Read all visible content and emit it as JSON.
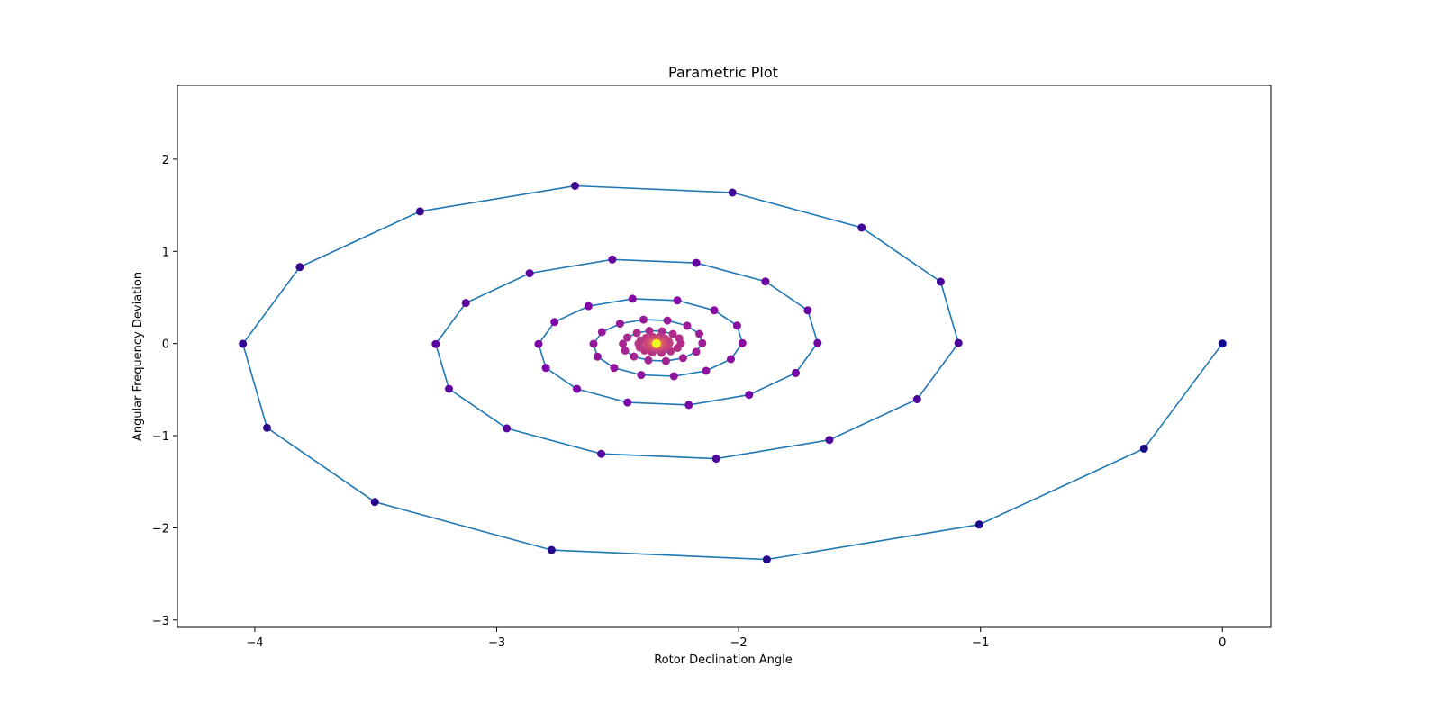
{
  "chart_data": {
    "type": "line+scatter",
    "title": "Parametric Plot",
    "xlabel": "Rotor Declination Angle",
    "ylabel": "Angular Frequency Deviation",
    "xlim": [
      -4.32,
      0.2
    ],
    "ylim": [
      -3.08,
      2.8
    ],
    "x_ticks": [
      -4,
      -3,
      -2,
      -1,
      0
    ],
    "x_tick_labels": [
      "−4",
      "−3",
      "−2",
      "−1",
      "0"
    ],
    "y_ticks": [
      -3,
      -2,
      -1,
      0,
      1,
      2
    ],
    "y_tick_labels": [
      "−3",
      "−2",
      "−1",
      "0",
      "1",
      "2"
    ],
    "grid": false,
    "line_color": "#1f77b4",
    "colormap": "plasma",
    "line": {
      "description": "damped spiral trajectory starting at (0,0)",
      "start": [
        0,
        0
      ],
      "steps": 160,
      "center": [
        -2.34,
        0.0
      ],
      "x_amp": 2.34,
      "y_amp": 2.75,
      "decay": 0.1,
      "dtheta_deg": 25.7
    },
    "scatter": {
      "description": "trajectory samples, colored by progression (plasma colormap)",
      "count": 250
    }
  }
}
